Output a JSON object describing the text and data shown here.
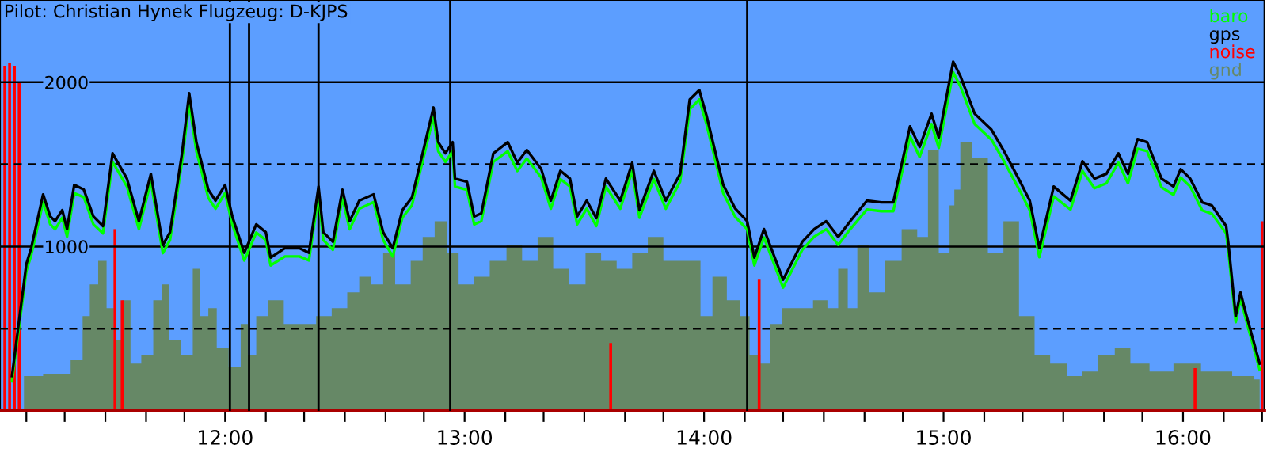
{
  "chart_data": {
    "type": "line",
    "title": "Pilot: Christian Hynek Flugzeug: D-KJPS",
    "xlim": [
      11.06,
      16.34
    ],
    "ylim": [
      0,
      2500
    ],
    "xticks": [
      {
        "value": 11.17,
        "label": null
      },
      {
        "value": 11.33,
        "label": null
      },
      {
        "value": 11.5,
        "label": null
      },
      {
        "value": 11.67,
        "label": null
      },
      {
        "value": 11.83,
        "label": null
      },
      {
        "value": 12,
        "label": "12:00"
      },
      {
        "value": 12.17,
        "label": null
      },
      {
        "value": 12.33,
        "label": null
      },
      {
        "value": 12.5,
        "label": null
      },
      {
        "value": 12.67,
        "label": null
      },
      {
        "value": 12.83,
        "label": null
      },
      {
        "value": 13,
        "label": "13:00"
      },
      {
        "value": 13.17,
        "label": null
      },
      {
        "value": 13.33,
        "label": null
      },
      {
        "value": 13.5,
        "label": null
      },
      {
        "value": 13.67,
        "label": null
      },
      {
        "value": 13.83,
        "label": null
      },
      {
        "value": 14,
        "label": "14:00"
      },
      {
        "value": 14.17,
        "label": null
      },
      {
        "value": 14.33,
        "label": null
      },
      {
        "value": 14.5,
        "label": null
      },
      {
        "value": 14.67,
        "label": null
      },
      {
        "value": 14.83,
        "label": null
      },
      {
        "value": 15,
        "label": "15:00"
      },
      {
        "value": 15.17,
        "label": null
      },
      {
        "value": 15.33,
        "label": null
      },
      {
        "value": 15.5,
        "label": null
      },
      {
        "value": 15.67,
        "label": null
      },
      {
        "value": 15.83,
        "label": null
      },
      {
        "value": 16,
        "label": "16:00"
      },
      {
        "value": 16.17,
        "label": null
      },
      {
        "value": 16.33,
        "label": null
      }
    ],
    "yticks": [
      {
        "value": 500,
        "label": null
      },
      1000,
      {
        "value": 1500,
        "label": null
      },
      2000
    ],
    "grid": "y",
    "legend": "top right",
    "ref_lines": [
      {
        "axis": "x",
        "value": 12.02,
        "color": "#000000"
      },
      {
        "axis": "x",
        "value": 12.1,
        "color": "#000000"
      },
      {
        "axis": "x",
        "value": 12.39,
        "color": "#000000"
      },
      {
        "axis": "x",
        "value": 12.94,
        "color": "#000000"
      },
      {
        "axis": "x",
        "value": 14.18,
        "color": "#000000"
      }
    ],
    "series": [
      {
        "name": "baro",
        "color": "#00ff00",
        "x": [
          11.11,
          11.17,
          11.19,
          11.24,
          11.27,
          11.29,
          11.32,
          11.34,
          11.37,
          11.41,
          11.45,
          11.49,
          11.53,
          11.59,
          11.64,
          11.69,
          11.74,
          11.77,
          11.82,
          11.85,
          11.88,
          11.93,
          11.96,
          12.0,
          12.03,
          12.08,
          12.13,
          12.17,
          12.19,
          12.25,
          12.31,
          12.35,
          12.39,
          12.41,
          12.45,
          12.49,
          12.52,
          12.56,
          12.62,
          12.66,
          12.7,
          12.74,
          12.78,
          12.82,
          12.87,
          12.89,
          12.92,
          12.95,
          12.96,
          13.01,
          13.04,
          13.07,
          13.12,
          13.18,
          13.22,
          13.26,
          13.32,
          13.36,
          13.4,
          13.44,
          13.47,
          13.51,
          13.55,
          13.59,
          13.65,
          13.7,
          13.73,
          13.79,
          13.84,
          13.9,
          13.94,
          13.98,
          14.01,
          14.08,
          14.13,
          14.18,
          14.21,
          14.25,
          14.33,
          14.37,
          14.41,
          14.46,
          14.51,
          14.56,
          14.61,
          14.68,
          14.74,
          14.79,
          14.86,
          14.9,
          14.95,
          14.98,
          15.04,
          15.07,
          15.13,
          15.2,
          15.25,
          15.32,
          15.36,
          15.4,
          15.46,
          15.53,
          15.58,
          15.63,
          15.68,
          15.73,
          15.77,
          15.81,
          15.85,
          15.91,
          15.96,
          15.99,
          16.03,
          16.08,
          16.12,
          16.18,
          16.19,
          16.22,
          16.24,
          16.26,
          16.32
        ],
        "values": [
          180,
          850,
          945,
          1270,
          1135,
          1105,
          1175,
          1060,
          1325,
          1300,
          1135,
          1080,
          1515,
          1365,
          1105,
          1395,
          960,
          1040,
          1515,
          1875,
          1580,
          1295,
          1230,
          1325,
          1135,
          915,
          1085,
          1040,
          885,
          940,
          940,
          915,
          1315,
          1040,
          980,
          1295,
          1105,
          1230,
          1270,
          1040,
          940,
          1175,
          1250,
          1490,
          1790,
          1580,
          1515,
          1580,
          1365,
          1345,
          1135,
          1155,
          1515,
          1580,
          1460,
          1535,
          1420,
          1230,
          1410,
          1365,
          1135,
          1230,
          1125,
          1365,
          1230,
          1460,
          1175,
          1410,
          1230,
          1395,
          1835,
          1895,
          1745,
          1325,
          1180,
          1105,
          885,
          1055,
          750,
          865,
          980,
          1060,
          1105,
          1010,
          1105,
          1225,
          1215,
          1215,
          1670,
          1545,
          1745,
          1600,
          2060,
          1975,
          1745,
          1650,
          1525,
          1335,
          1220,
          935,
          1305,
          1225,
          1460,
          1355,
          1385,
          1510,
          1385,
          1595,
          1580,
          1360,
          1315,
          1420,
          1365,
          1220,
          1200,
          1080,
          960,
          540,
          685,
          570,
          250
        ]
      },
      {
        "name": "gps",
        "color": "#000000",
        "x": [
          11.11,
          11.17,
          11.19,
          11.24,
          11.27,
          11.29,
          11.32,
          11.34,
          11.37,
          11.41,
          11.45,
          11.49,
          11.53,
          11.59,
          11.64,
          11.69,
          11.74,
          11.77,
          11.82,
          11.85,
          11.88,
          11.93,
          11.96,
          12.0,
          12.03,
          12.08,
          12.13,
          12.17,
          12.19,
          12.25,
          12.31,
          12.35,
          12.39,
          12.41,
          12.45,
          12.49,
          12.52,
          12.56,
          12.62,
          12.66,
          12.7,
          12.74,
          12.78,
          12.82,
          12.87,
          12.89,
          12.92,
          12.95,
          12.96,
          13.01,
          13.04,
          13.07,
          13.12,
          13.18,
          13.22,
          13.26,
          13.32,
          13.36,
          13.4,
          13.44,
          13.47,
          13.51,
          13.55,
          13.59,
          13.65,
          13.7,
          13.73,
          13.79,
          13.84,
          13.9,
          13.94,
          13.98,
          14.01,
          14.08,
          14.13,
          14.18,
          14.21,
          14.25,
          14.33,
          14.37,
          14.41,
          14.46,
          14.51,
          14.56,
          14.61,
          14.68,
          14.74,
          14.79,
          14.86,
          14.9,
          14.95,
          14.98,
          15.04,
          15.07,
          15.13,
          15.2,
          15.25,
          15.32,
          15.36,
          15.4,
          15.46,
          15.53,
          15.58,
          15.63,
          15.68,
          15.73,
          15.77,
          15.81,
          15.85,
          15.91,
          15.96,
          15.99,
          16.03,
          16.08,
          16.12,
          16.18,
          16.19,
          16.22,
          16.24,
          16.26,
          16.32
        ],
        "values": [
          212,
          894,
          990,
          1317,
          1183,
          1154,
          1221,
          1106,
          1375,
          1346,
          1183,
          1125,
          1567,
          1413,
          1154,
          1442,
          1010,
          1087,
          1567,
          1933,
          1635,
          1346,
          1279,
          1375,
          1183,
          962,
          1135,
          1087,
          933,
          990,
          990,
          962,
          1365,
          1087,
          1029,
          1346,
          1154,
          1279,
          1317,
          1087,
          990,
          1221,
          1298,
          1538,
          1846,
          1635,
          1567,
          1635,
          1413,
          1394,
          1183,
          1202,
          1567,
          1635,
          1510,
          1587,
          1471,
          1279,
          1461,
          1413,
          1183,
          1279,
          1173,
          1413,
          1279,
          1510,
          1221,
          1461,
          1279,
          1442,
          1894,
          1952,
          1798,
          1375,
          1231,
          1154,
          933,
          1106,
          798,
          913,
          1029,
          1106,
          1154,
          1058,
          1154,
          1279,
          1269,
          1269,
          1731,
          1606,
          1808,
          1663,
          2125,
          2038,
          1808,
          1711,
          1587,
          1394,
          1279,
          990,
          1365,
          1279,
          1519,
          1413,
          1442,
          1567,
          1442,
          1654,
          1635,
          1413,
          1365,
          1471,
          1413,
          1269,
          1250,
          1125,
          1010,
          577,
          721,
          606,
          288
        ]
      },
      {
        "name": "noise",
        "type": "bar",
        "color": "#ff0000",
        "x": [
          11.08,
          11.1,
          11.12,
          11.14,
          11.54,
          11.57,
          13.61,
          14.23,
          16.05,
          16.33
        ],
        "values": [
          2100,
          2115,
          2100,
          2000,
          1106,
          673,
          413,
          798,
          260,
          1154
        ]
      },
      {
        "name": "gnd",
        "type": "area",
        "color": "#668866",
        "x": [
          11.16,
          11.32,
          11.39,
          11.42,
          11.45,
          11.49,
          11.52,
          11.55,
          11.59,
          11.62,
          11.68,
          11.72,
          11.75,
          11.78,
          11.85,
          11.88,
          11.91,
          11.95,
          11.98,
          12.05,
          12.08,
          12.11,
          12.15,
          12.21,
          12.28,
          12.35,
          12.41,
          12.48,
          12.54,
          12.58,
          12.64,
          12.68,
          12.74,
          12.81,
          12.84,
          12.91,
          12.94,
          13.01,
          13.07,
          13.14,
          13.21,
          13.27,
          13.34,
          13.4,
          13.47,
          13.54,
          13.6,
          13.67,
          13.73,
          13.8,
          13.86,
          13.96,
          14.01,
          14.06,
          14.13,
          14.17,
          14.21,
          14.26,
          14.29,
          14.36,
          14.42,
          14.49,
          14.54,
          14.58,
          14.62,
          14.66,
          14.72,
          14.79,
          14.86,
          14.92,
          14.95,
          15.01,
          15.04,
          15.05,
          15.09,
          15.15,
          15.22,
          15.28,
          15.35,
          15.41,
          15.48,
          15.55,
          15.61,
          15.68,
          15.75,
          15.81,
          15.91,
          16.01,
          16.14,
          16.27,
          16.32
        ],
        "values": [
          212,
          221,
          308,
          577,
          769,
          913,
          625,
          433,
          673,
          288,
          337,
          673,
          769,
          433,
          337,
          865,
          577,
          625,
          385,
          269,
          529,
          337,
          577,
          673,
          529,
          529,
          577,
          625,
          721,
          817,
          769,
          962,
          769,
          913,
          1058,
          1154,
          962,
          769,
          817,
          913,
          1010,
          913,
          1058,
          865,
          769,
          962,
          913,
          865,
          962,
          1058,
          913,
          913,
          577,
          817,
          673,
          577,
          337,
          288,
          529,
          625,
          625,
          673,
          625,
          865,
          625,
          1010,
          721,
          913,
          1106,
          1058,
          1587,
          962,
          1250,
          1346,
          1635,
          1538,
          962,
          1154,
          577,
          337,
          288,
          212,
          240,
          337,
          385,
          288,
          240,
          288,
          240,
          212,
          192
        ]
      }
    ]
  }
}
